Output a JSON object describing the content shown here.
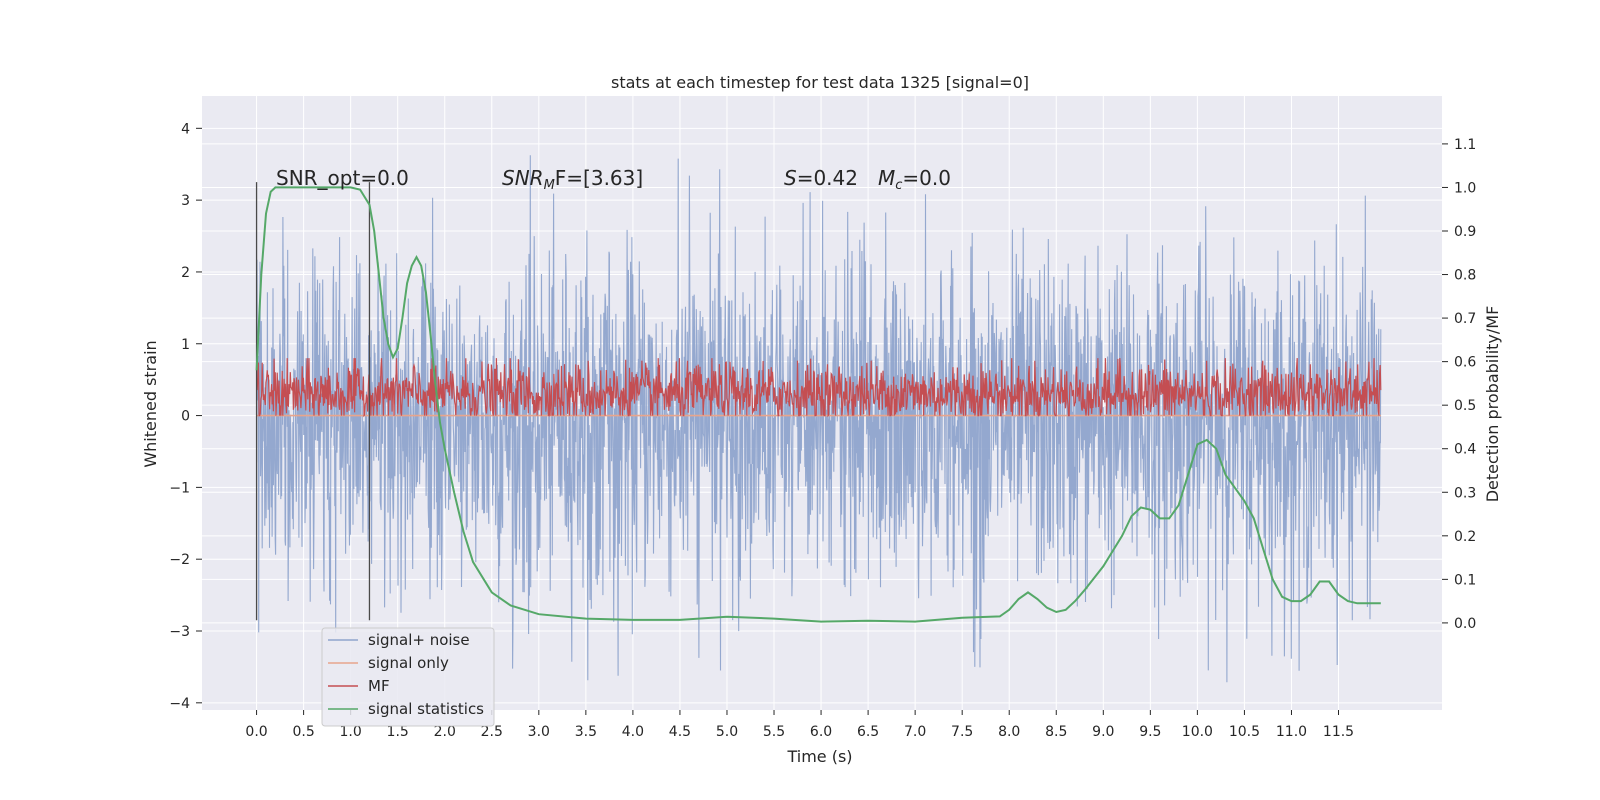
{
  "chart_data": {
    "type": "line",
    "title": "stats at each timestep for test data 1325 [signal=0]",
    "xlabel": "Time (s)",
    "ylabel": "Whitened strain",
    "ylabel_right": "Detection probability/MF",
    "xlim": [
      -0.58,
      12.6
    ],
    "ylim": [
      -4.1,
      4.45
    ],
    "ylim_right": [
      -0.2,
      1.21
    ],
    "x_ticks": [
      "0.0",
      "0.5",
      "1.0",
      "1.5",
      "2.0",
      "2.5",
      "3.0",
      "3.5",
      "4.0",
      "4.5",
      "5.0",
      "5.5",
      "6.0",
      "6.5",
      "7.0",
      "7.5",
      "8.0",
      "8.5",
      "9.0",
      "9.5",
      "10.0",
      "10.5",
      "11.0",
      "11.5"
    ],
    "y_ticks": [
      "4",
      "3",
      "2",
      "1",
      "0",
      "−1",
      "−2",
      "−3",
      "−4"
    ],
    "y_right_ticks": [
      "1.1",
      "1.0",
      "0.9",
      "0.8",
      "0.7",
      "0.6",
      "0.5",
      "0.4",
      "0.3",
      "0.2",
      "0.1",
      "0.0"
    ],
    "grid": true,
    "legend_position": "lower-left",
    "annotations": [
      {
        "text": "SNR_opt=0.0"
      },
      {
        "text": "SNR",
        "sub": "M",
        "tail": "F=[3.63]"
      },
      {
        "text": "S",
        "tail": "=0.42"
      },
      {
        "text": "M",
        "sub": "c",
        "tail": "=0.0"
      }
    ],
    "vertical_markers_x": [
      0.0,
      1.2
    ],
    "series": [
      {
        "name": "signal+ noise",
        "axis": "left",
        "color": "#8fa4cc",
        "x_range": [
          0.0,
          11.95
        ],
        "envelope_upper_approx": 2.2,
        "envelope_lower_approx": -2.4,
        "extremes_approx": [
          3.65,
          -3.72
        ]
      },
      {
        "name": "signal only",
        "axis": "left",
        "color": "#e8a58c",
        "x": [
          0.0,
          11.95
        ],
        "values": [
          0.0,
          0.0
        ]
      },
      {
        "name": "MF",
        "axis": "left",
        "color": "#c44e52",
        "x_range": [
          0.0,
          11.95
        ],
        "band_approx": [
          0.0,
          0.75
        ]
      },
      {
        "name": "signal statistics",
        "axis": "right",
        "color": "#55a868",
        "x": [
          0.0,
          0.05,
          0.1,
          0.15,
          0.2,
          0.3,
          0.5,
          0.8,
          1.0,
          1.1,
          1.2,
          1.25,
          1.3,
          1.35,
          1.4,
          1.45,
          1.5,
          1.55,
          1.6,
          1.65,
          1.7,
          1.75,
          1.8,
          1.85,
          1.9,
          1.95,
          2.0,
          2.1,
          2.2,
          2.3,
          2.5,
          2.7,
          3.0,
          3.5,
          4.0,
          4.5,
          5.0,
          5.5,
          6.0,
          6.5,
          7.0,
          7.5,
          7.9,
          8.0,
          8.1,
          8.2,
          8.3,
          8.4,
          8.5,
          8.6,
          8.7,
          8.8,
          9.0,
          9.2,
          9.3,
          9.4,
          9.5,
          9.6,
          9.7,
          9.8,
          9.9,
          10.0,
          10.1,
          10.2,
          10.3,
          10.4,
          10.5,
          10.6,
          10.7,
          10.8,
          10.9,
          11.0,
          11.1,
          11.2,
          11.3,
          11.4,
          11.5,
          11.6,
          11.7,
          11.8,
          11.9,
          11.95
        ],
        "values": [
          0.58,
          0.8,
          0.94,
          0.99,
          1.0,
          1.0,
          1.0,
          1.0,
          1.0,
          0.995,
          0.96,
          0.9,
          0.8,
          0.7,
          0.64,
          0.61,
          0.63,
          0.7,
          0.78,
          0.82,
          0.84,
          0.82,
          0.76,
          0.66,
          0.55,
          0.46,
          0.4,
          0.3,
          0.21,
          0.14,
          0.07,
          0.04,
          0.02,
          0.01,
          0.007,
          0.007,
          0.014,
          0.01,
          0.003,
          0.005,
          0.003,
          0.012,
          0.015,
          0.03,
          0.055,
          0.07,
          0.055,
          0.035,
          0.025,
          0.03,
          0.05,
          0.075,
          0.13,
          0.2,
          0.245,
          0.265,
          0.26,
          0.24,
          0.24,
          0.27,
          0.34,
          0.41,
          0.42,
          0.4,
          0.34,
          0.31,
          0.28,
          0.24,
          0.17,
          0.1,
          0.06,
          0.05,
          0.05,
          0.065,
          0.095,
          0.095,
          0.065,
          0.05,
          0.045,
          0.045,
          0.045,
          0.045
        ]
      }
    ]
  }
}
